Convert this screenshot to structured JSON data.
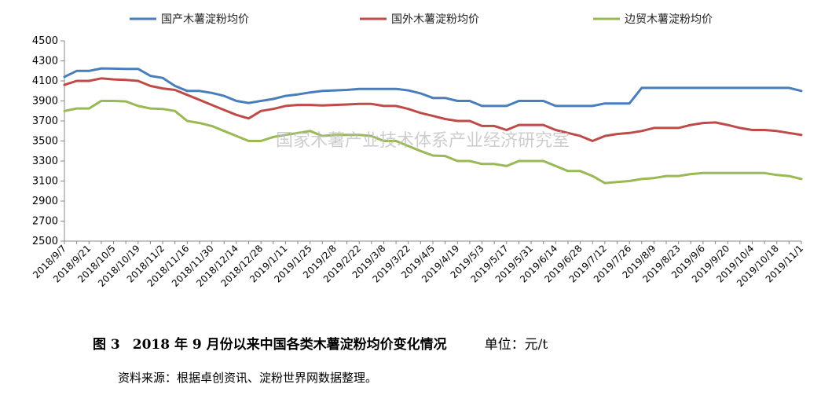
{
  "chart_data": {
    "type": "line",
    "ylim": [
      2500,
      4500
    ],
    "yticks": [
      2500,
      2700,
      2900,
      3100,
      3300,
      3500,
      3700,
      3900,
      4100,
      4300,
      4500
    ],
    "legend_position": "top",
    "grid": false,
    "x": [
      "2018/9/7",
      "2018/9/14",
      "2018/9/21",
      "2018/9/28",
      "2018/10/5",
      "2018/10/12",
      "2018/10/19",
      "2018/10/26",
      "2018/11/2",
      "2018/11/9",
      "2018/11/16",
      "2018/11/23",
      "2018/11/30",
      "2018/12/7",
      "2018/12/14",
      "2018/12/21",
      "2018/12/28",
      "2019/1/4",
      "2019/1/11",
      "2019/1/18",
      "2019/1/25",
      "2019/2/1",
      "2019/2/8",
      "2019/2/15",
      "2019/2/22",
      "2019/3/1",
      "2019/3/8",
      "2019/3/15",
      "2019/3/22",
      "2019/3/29",
      "2019/4/5",
      "2019/4/12",
      "2019/4/19",
      "2019/4/26",
      "2019/5/3",
      "2019/5/10",
      "2019/5/17",
      "2019/5/24",
      "2019/5/31",
      "2019/6/7",
      "2019/6/14",
      "2019/6/21",
      "2019/6/28",
      "2019/7/5",
      "2019/7/12",
      "2019/7/19",
      "2019/7/26",
      "2019/8/2",
      "2019/8/9",
      "2019/8/16",
      "2019/8/23",
      "2019/8/30",
      "2019/9/6",
      "2019/9/13",
      "2019/9/20",
      "2019/9/27",
      "2019/10/4",
      "2019/10/11",
      "2019/10/18",
      "2019/10/25",
      "2019/11/1"
    ],
    "xtick_labels": [
      "2018/9/7",
      "2018/9/21",
      "2018/10/5",
      "2018/10/19",
      "2018/11/2",
      "2018/11/16",
      "2018/11/30",
      "2018/12/14",
      "2018/12/28",
      "2019/1/11",
      "2019/1/25",
      "2019/2/8",
      "2019/2/22",
      "2019/3/8",
      "2019/3/22",
      "2019/4/5",
      "2019/4/19",
      "2019/5/3",
      "2019/5/17",
      "2019/5/31",
      "2019/6/14",
      "2019/6/28",
      "2019/7/12",
      "2019/7/26",
      "2019/8/9",
      "2019/8/23",
      "2019/9/6",
      "2019/9/20",
      "2019/10/4",
      "2019/10/18",
      "2019/11/1"
    ],
    "series": [
      {
        "name": "国产木薯淀粉均价",
        "color": "#4a7ebb",
        "values": [
          4140,
          4200,
          4200,
          4225,
          4222,
          4220,
          4220,
          4150,
          4130,
          4050,
          4000,
          4000,
          3980,
          3950,
          3900,
          3880,
          3900,
          3920,
          3950,
          3965,
          3985,
          4000,
          4005,
          4010,
          4020,
          4020,
          4020,
          4020,
          4005,
          3975,
          3930,
          3930,
          3900,
          3900,
          3850,
          3850,
          3850,
          3900,
          3900,
          3900,
          3850,
          3850,
          3850,
          3850,
          3875,
          3875,
          3875,
          4030,
          4030,
          4030,
          4030,
          4030,
          4030,
          4030,
          4030,
          4030,
          4030,
          4030,
          4030,
          4030,
          4000
        ]
      },
      {
        "name": "国外木薯淀粉均价",
        "color": "#be4b48",
        "values": [
          4060,
          4100,
          4100,
          4125,
          4115,
          4110,
          4100,
          4050,
          4025,
          4010,
          3960,
          3910,
          3860,
          3810,
          3760,
          3725,
          3800,
          3820,
          3850,
          3860,
          3860,
          3855,
          3860,
          3865,
          3870,
          3870,
          3850,
          3850,
          3820,
          3780,
          3750,
          3720,
          3700,
          3700,
          3650,
          3650,
          3610,
          3660,
          3660,
          3660,
          3610,
          3580,
          3550,
          3500,
          3550,
          3570,
          3580,
          3600,
          3630,
          3630,
          3630,
          3660,
          3680,
          3685,
          3660,
          3630,
          3610,
          3610,
          3600,
          3580,
          3560
        ]
      },
      {
        "name": "边贸木薯淀粉均价",
        "color": "#98b954",
        "values": [
          3800,
          3825,
          3825,
          3900,
          3900,
          3895,
          3850,
          3825,
          3820,
          3800,
          3700,
          3680,
          3650,
          3600,
          3550,
          3500,
          3500,
          3540,
          3560,
          3580,
          3600,
          3550,
          3560,
          3560,
          3560,
          3550,
          3500,
          3500,
          3450,
          3400,
          3355,
          3350,
          3300,
          3300,
          3270,
          3270,
          3250,
          3300,
          3300,
          3300,
          3250,
          3200,
          3200,
          3150,
          3080,
          3090,
          3100,
          3120,
          3130,
          3150,
          3150,
          3170,
          3180,
          3180,
          3180,
          3180,
          3180,
          3180,
          3160,
          3150,
          3120
        ]
      }
    ]
  },
  "watermark": "国家木薯产业技术体系产业经济研究室",
  "caption": {
    "figure_no": "图 3",
    "title": "2018 年 9 月份以来中国各类木薯淀粉均价变化情况",
    "unit": "单位：元/t"
  },
  "source_note": "资料来源：根据卓创资讯、淀粉世界网数据整理。"
}
